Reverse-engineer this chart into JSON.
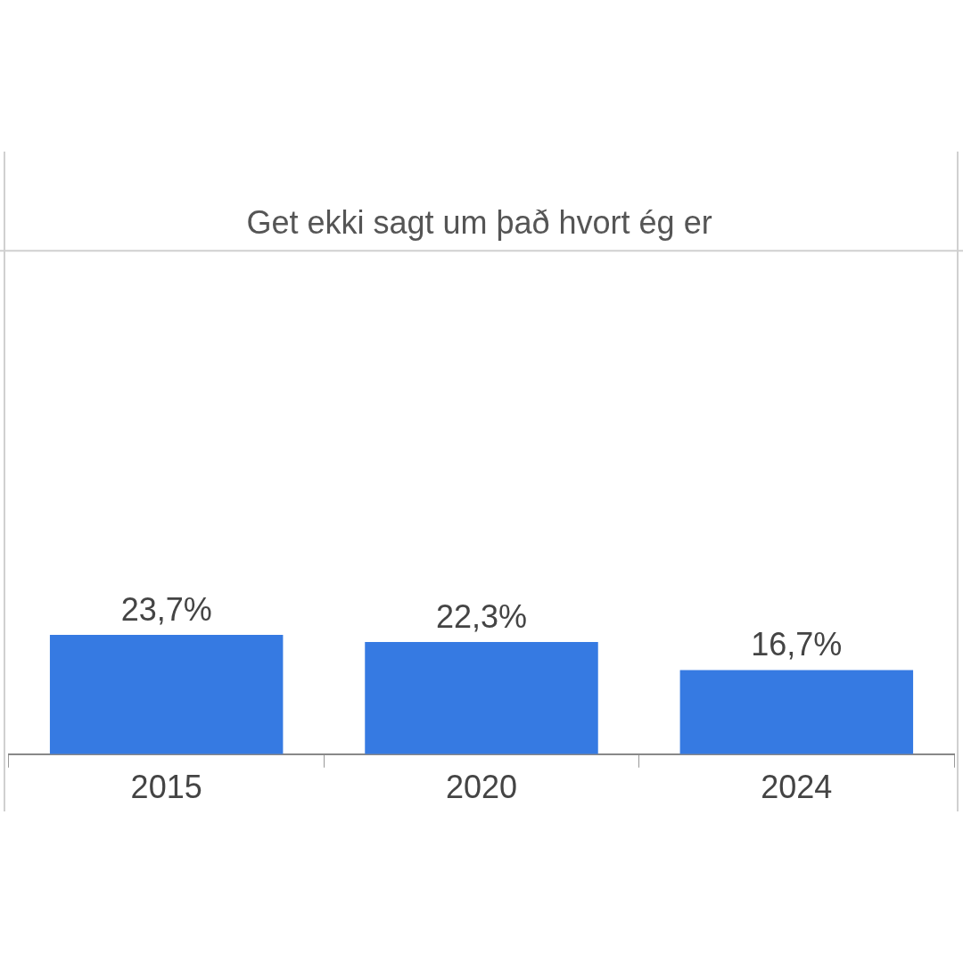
{
  "chart_data": {
    "type": "bar",
    "title": "Get ekki sagt um það hvort ég er",
    "categories": [
      "2015",
      "2020",
      "2024"
    ],
    "values": [
      23.7,
      22.3,
      16.7
    ],
    "color": "#367ae2",
    "value_labels": [
      "23,7%",
      "22,3%",
      "16,7%"
    ],
    "ylim": [
      0,
      100
    ],
    "ref_lines": [
      {
        "axis": "y",
        "value": 100,
        "color": "#d0d0d0"
      }
    ],
    "tick_labels": "x",
    "legend": false
  }
}
